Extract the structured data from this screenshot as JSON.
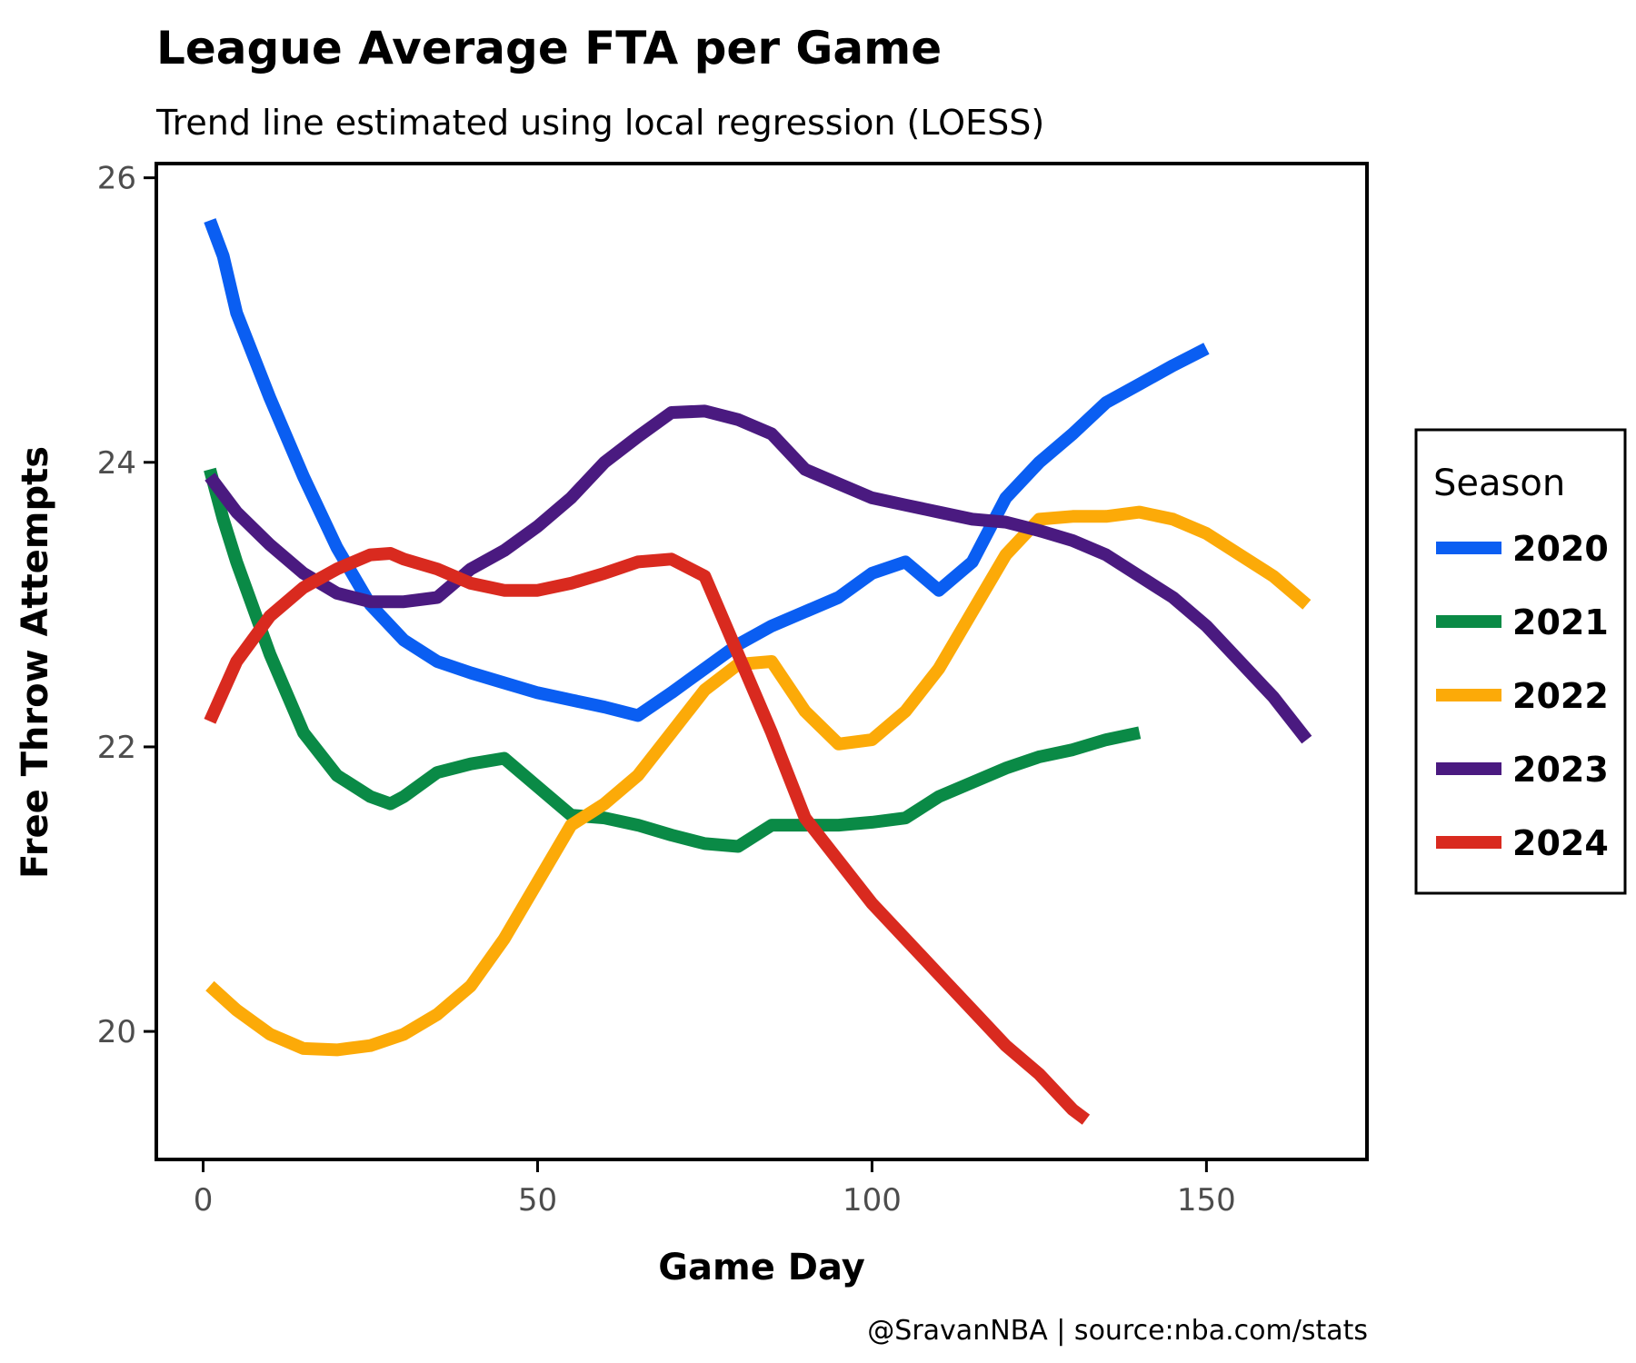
{
  "chart_data": {
    "type": "line",
    "title": "League Average FTA per Game",
    "subtitle": "Trend line estimated using local regression (LOESS)",
    "xlabel": "Game Day",
    "ylabel": "Free Throw Attempts",
    "caption": "@SravanNBA | source:nba.com/stats",
    "xlim": [
      -7,
      174
    ],
    "ylim": [
      19.1,
      26.1
    ],
    "xticks": [
      0,
      50,
      100,
      150
    ],
    "yticks": [
      20,
      22,
      24,
      26
    ],
    "grid": false,
    "legend": {
      "title": "Season",
      "placement": "right"
    },
    "series": [
      {
        "name": "2020",
        "color": "#0a5ef2",
        "x": [
          1,
          3,
          5,
          10,
          15,
          20,
          25,
          30,
          35,
          40,
          45,
          50,
          55,
          60,
          65,
          70,
          75,
          80,
          85,
          90,
          95,
          100,
          105,
          110,
          115,
          120,
          125,
          130,
          135,
          140,
          145,
          150
        ],
        "y": [
          25.7,
          25.45,
          25.05,
          24.45,
          23.9,
          23.4,
          23.0,
          22.75,
          22.6,
          22.52,
          22.45,
          22.38,
          22.33,
          22.28,
          22.22,
          22.38,
          22.55,
          22.72,
          22.85,
          22.95,
          23.05,
          23.22,
          23.3,
          23.1,
          23.3,
          23.75,
          24.0,
          24.2,
          24.42,
          24.55,
          24.68,
          24.8
        ]
      },
      {
        "name": "2021",
        "color": "#0a8a46",
        "x": [
          1,
          3,
          5,
          10,
          15,
          20,
          25,
          28,
          30,
          35,
          40,
          45,
          50,
          55,
          60,
          65,
          70,
          75,
          80,
          85,
          90,
          95,
          100,
          105,
          110,
          115,
          120,
          125,
          130,
          135,
          140
        ],
        "y": [
          23.95,
          23.6,
          23.3,
          22.65,
          22.1,
          21.8,
          21.65,
          21.6,
          21.65,
          21.82,
          21.88,
          21.92,
          21.72,
          21.52,
          21.5,
          21.45,
          21.38,
          21.32,
          21.3,
          21.45,
          21.45,
          21.45,
          21.47,
          21.5,
          21.65,
          21.75,
          21.85,
          21.93,
          21.98,
          22.05,
          22.1
        ]
      },
      {
        "name": "2022",
        "color": "#fcaa08",
        "x": [
          1,
          5,
          10,
          15,
          20,
          25,
          30,
          35,
          40,
          45,
          50,
          55,
          60,
          65,
          70,
          75,
          80,
          85,
          90,
          95,
          100,
          105,
          110,
          115,
          120,
          125,
          130,
          135,
          140,
          145,
          150,
          155,
          160,
          165
        ],
        "y": [
          20.32,
          20.15,
          19.98,
          19.88,
          19.87,
          19.9,
          19.98,
          20.12,
          20.32,
          20.65,
          21.05,
          21.45,
          21.6,
          21.8,
          22.1,
          22.4,
          22.58,
          22.6,
          22.25,
          22.02,
          22.05,
          22.25,
          22.55,
          22.95,
          23.35,
          23.6,
          23.62,
          23.62,
          23.65,
          23.6,
          23.5,
          23.35,
          23.2,
          23.0
        ]
      },
      {
        "name": "2023",
        "color": "#4a1a80",
        "x": [
          1,
          5,
          10,
          15,
          20,
          25,
          30,
          35,
          40,
          45,
          50,
          55,
          60,
          65,
          70,
          75,
          80,
          85,
          90,
          95,
          100,
          105,
          110,
          115,
          120,
          125,
          130,
          135,
          140,
          145,
          150,
          155,
          160,
          165
        ],
        "y": [
          23.9,
          23.65,
          23.42,
          23.22,
          23.08,
          23.02,
          23.02,
          23.05,
          23.25,
          23.38,
          23.55,
          23.75,
          24.0,
          24.18,
          24.35,
          24.36,
          24.3,
          24.2,
          23.95,
          23.85,
          23.75,
          23.7,
          23.65,
          23.6,
          23.58,
          23.52,
          23.45,
          23.35,
          23.2,
          23.05,
          22.85,
          22.6,
          22.35,
          22.05
        ]
      },
      {
        "name": "2024",
        "color": "#d92a1f",
        "x": [
          1,
          5,
          10,
          15,
          20,
          25,
          28,
          30,
          35,
          40,
          45,
          50,
          55,
          60,
          65,
          70,
          75,
          80,
          85,
          90,
          95,
          100,
          105,
          110,
          115,
          120,
          125,
          130,
          132
        ],
        "y": [
          22.18,
          22.6,
          22.92,
          23.12,
          23.25,
          23.35,
          23.36,
          23.32,
          23.25,
          23.15,
          23.1,
          23.1,
          23.15,
          23.22,
          23.3,
          23.32,
          23.2,
          22.65,
          22.1,
          21.5,
          21.2,
          20.9,
          20.65,
          20.4,
          20.15,
          19.9,
          19.7,
          19.45,
          19.38
        ]
      }
    ]
  }
}
